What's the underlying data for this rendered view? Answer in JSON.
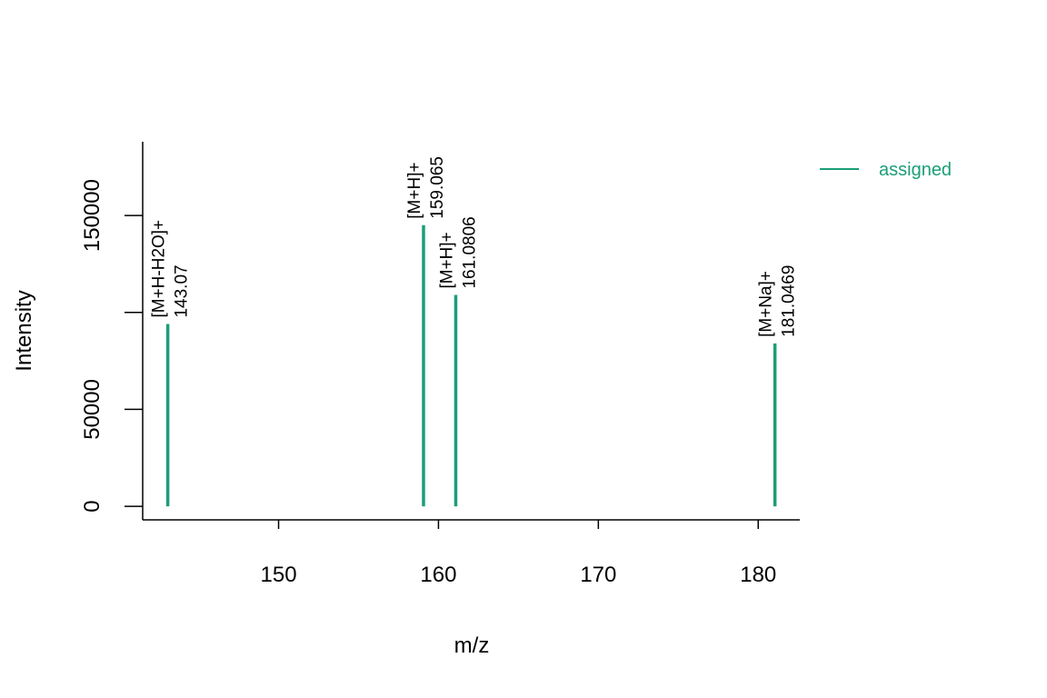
{
  "chart_data": {
    "type": "bar",
    "title": "",
    "xlabel": "m/z",
    "ylabel": "Intensity",
    "xlim": [
      141.5,
      182.6
    ],
    "ylim": [
      -7000,
      188000
    ],
    "xticks": [
      150,
      160,
      170,
      180
    ],
    "yticks": [
      0,
      50000,
      100000,
      150000
    ],
    "ytick_labels": [
      "0",
      "50000",
      "",
      "150000"
    ],
    "grid": false,
    "legend": {
      "position": "top-right",
      "entries": [
        {
          "name": "assigned",
          "color": "#1b9e77"
        }
      ]
    },
    "series": [
      {
        "name": "assigned",
        "color": "#1b9e77",
        "peaks": [
          {
            "mz": 143.07,
            "intensity": 94000,
            "annotation": "[M+H-H2O]+",
            "mz_label": "143.07"
          },
          {
            "mz": 159.065,
            "intensity": 145000,
            "annotation": "[M+H]+",
            "mz_label": "159.065"
          },
          {
            "mz": 161.0806,
            "intensity": 109000,
            "annotation": "[M+H]+",
            "mz_label": "161.0806"
          },
          {
            "mz": 181.0469,
            "intensity": 84000,
            "annotation": "[M+Na]+",
            "mz_label": "181.0469"
          }
        ]
      }
    ]
  }
}
